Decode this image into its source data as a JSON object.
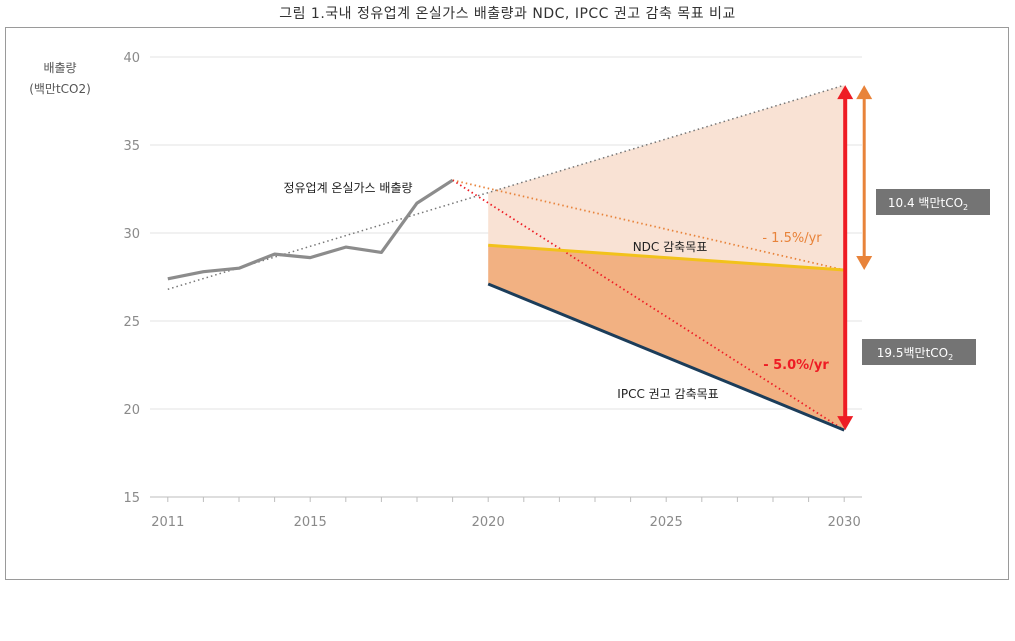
{
  "chart_data": {
    "type": "line",
    "title": "그림 1.국내 정유업계 온실가스 배출량과 NDC, IPCC 권고 감축 목표 비교",
    "ylabel_line1": "배출량",
    "ylabel_line2": "(백만tCO2)",
    "ylim": [
      15,
      40
    ],
    "xlim": [
      2010.5,
      2030.5
    ],
    "y_ticks": [
      15,
      20,
      25,
      30,
      35,
      40
    ],
    "x_ticks": [
      2011,
      2015,
      2020,
      2025,
      2030
    ],
    "grid": true,
    "series": [
      {
        "name": "정유업계 온실가스 배출량",
        "color": "#8c8c8c",
        "points": [
          [
            2011,
            27.4
          ],
          [
            2012,
            27.8
          ],
          [
            2013,
            28.0
          ],
          [
            2014,
            28.8
          ],
          [
            2015,
            28.6
          ],
          [
            2016,
            29.2
          ],
          [
            2017,
            28.9
          ],
          [
            2018,
            31.7
          ],
          [
            2019,
            33.0
          ]
        ]
      },
      {
        "name": "NDC 감축목표",
        "color": "#f2c21b",
        "points": [
          [
            2020,
            29.3
          ],
          [
            2030,
            27.9
          ]
        ]
      },
      {
        "name": "IPCC 권고 감축목표",
        "color": "#1c3d5a",
        "points": [
          [
            2020,
            27.1
          ],
          [
            2030,
            18.8
          ]
        ]
      }
    ],
    "trend_line": {
      "color": "#777777",
      "points": [
        [
          2011,
          26.8
        ],
        [
          2030,
          38.4
        ]
      ]
    },
    "projection_ndc": {
      "label": "- 1.5%/yr",
      "color": "#e8833a",
      "points": [
        [
          2019,
          33.0
        ],
        [
          2030,
          27.9
        ]
      ]
    },
    "projection_ipcc": {
      "label": "- 5.0%/yr",
      "color": "#ee1c24",
      "points": [
        [
          2019,
          33.0
        ],
        [
          2030,
          18.8
        ]
      ]
    },
    "gap_ndc": {
      "label": "10.4 백만tCO",
      "sub": "2",
      "from": 38.4,
      "to": 27.9,
      "color": "#e8833a"
    },
    "gap_ipcc": {
      "label": "19.5백만tCO",
      "sub": "2",
      "from": 38.4,
      "to": 18.8,
      "color": "#ee1c24"
    },
    "fill_colors": {
      "upper": "#f9e2d4",
      "lower": "#f2b182"
    }
  }
}
